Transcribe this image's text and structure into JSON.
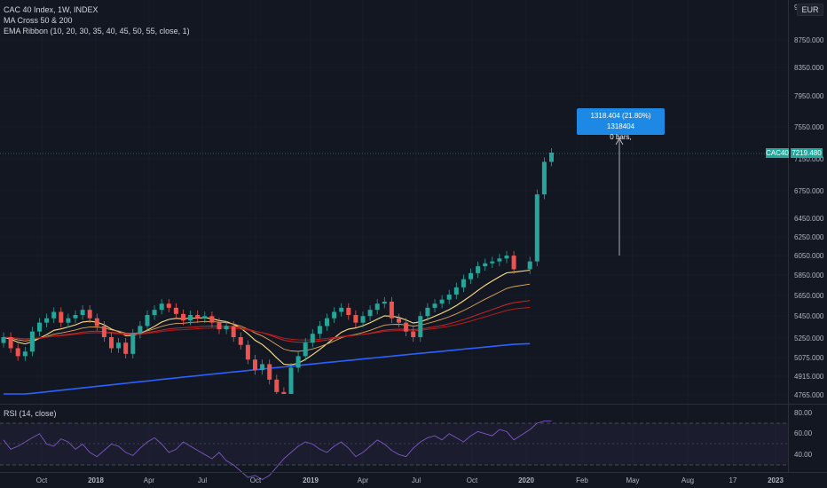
{
  "legend": {
    "title": "CAC 40 Index, 1W, INDEX",
    "ma_cross": "MA Cross 50 & 200",
    "ema_ribbon": "EMA Ribbon (10, 20, 30, 35, 40, 45, 50, 55, close, 1)"
  },
  "currency_badge": "EUR",
  "price_tag": {
    "symbol": "CAC40",
    "value": "7219.480"
  },
  "measure": {
    "line1": "1318.404 (21.80%) 1318404",
    "line2": "0 bars,"
  },
  "rsi_label": "RSI (14, close)",
  "price_axis": {
    "labels": [
      "9",
      "8750.000",
      "8350.000",
      "7950.000",
      "7550.000",
      "7150.000",
      "6750.000",
      "6450.000",
      "6250.000",
      "6050.000",
      "5850.000",
      "5650.000",
      "5450.000",
      "5250.000",
      "5075.000",
      "4915.000",
      "4765.000"
    ]
  },
  "rsi_axis": {
    "labels": [
      "80.00",
      "60.00",
      "40.00"
    ]
  },
  "time_axis": {
    "labels": [
      "Oct",
      "2018",
      "Apr",
      "Jul",
      "Oct",
      "2019",
      "Apr",
      "Jul",
      "Oct",
      "2020",
      "Feb",
      "May",
      "Aug",
      "17",
      "2023"
    ]
  },
  "colors": {
    "background": "#131722",
    "up": "#26a69a",
    "down": "#ef5350",
    "ma50": "#c62828",
    "ma200": "#2962ff",
    "ema_fast": "#ffe082",
    "rsi": "#7e57c2",
    "measure": "#1e88e5"
  },
  "chart_data": {
    "type": "candlestick",
    "interval": "1W",
    "y_scale": "log",
    "candles_close_approx": [
      5250,
      5150,
      5080,
      5120,
      5300,
      5380,
      5420,
      5480,
      5380,
      5420,
      5450,
      5500,
      5420,
      5350,
      5250,
      5150,
      5200,
      5100,
      5280,
      5350,
      5450,
      5500,
      5560,
      5520,
      5460,
      5400,
      5450,
      5420,
      5440,
      5380,
      5320,
      5350,
      5250,
      5180,
      5050,
      4960,
      5010,
      4880,
      4780,
      4760,
      4980,
      5080,
      5200,
      5280,
      5350,
      5420,
      5480,
      5520,
      5450,
      5380,
      5440,
      5500,
      5560,
      5580,
      5420,
      5380,
      5300,
      5250,
      5440,
      5520,
      5560,
      5600,
      5650,
      5720,
      5800,
      5860,
      5930,
      5960,
      5980,
      6010,
      6040,
      5900,
      5980,
      6700,
      7100,
      7219
    ],
    "last_close": 7219.48,
    "indicators": [
      "MA Cross 50 & 200",
      "EMA Ribbon",
      "RSI (14, close)"
    ]
  }
}
